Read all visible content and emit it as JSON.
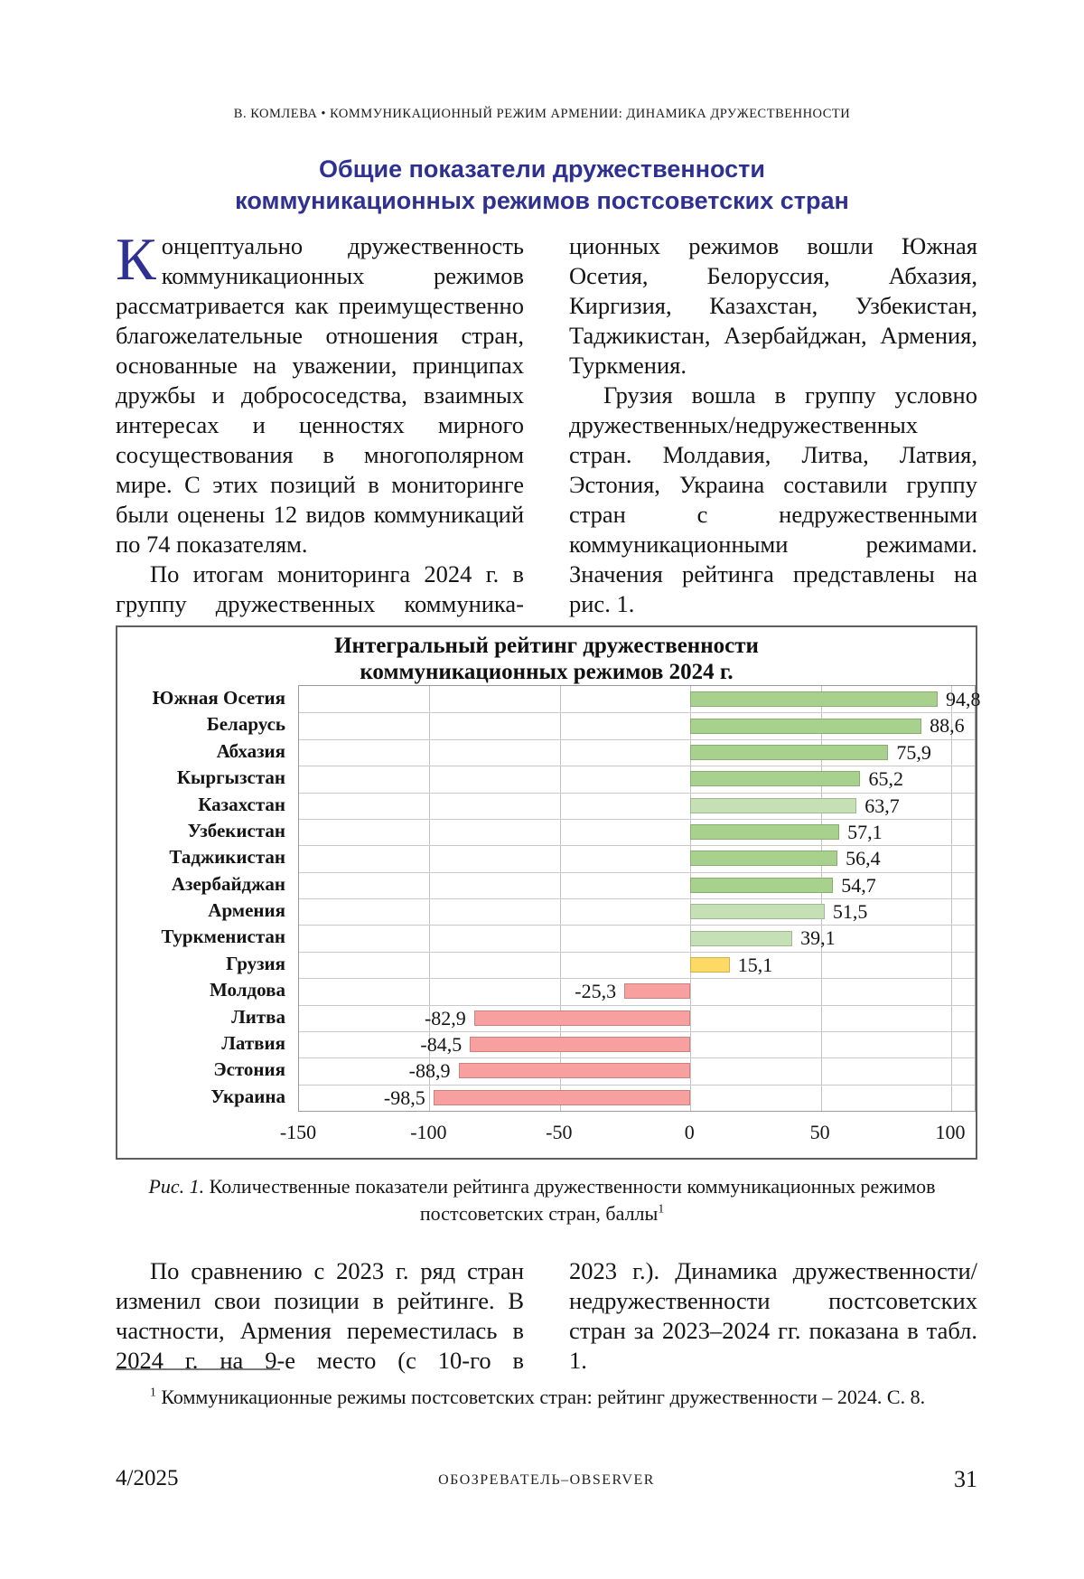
{
  "running_header": "В. КОМЛЕВА  •  КОММУНИКАЦИОННЫЙ РЕЖИМ АРМЕНИИ: ДИНАМИКА ДРУЖЕСТВЕННОСТИ",
  "title": {
    "line1": "Общие показатели дружественности",
    "line2": "коммуникационных режимов постсоветских стран",
    "color": "#2e3192"
  },
  "body1": {
    "col1_para1_dropcap": "К",
    "col1_para1_rest": "онцептуально дружественность коммуникационных режимов рассматривается как преимущественно благожелательные отношения стран, основанные на уважении, принципах дружбы и добрососедства, взаимных интересах и ценностях мирного сосуществования в многополярном мире. С этих позиций в мониторинге были оценены 12 видов коммуникаций по 74 показателям.",
    "col1_para2": "По итогам мониторинга 2024 г. в группу дружественных коммуника-",
    "col2_para1": "ционных режимов вошли Южная Осетия, Белоруссия, Абхазия, Киргизия, Казахстан, Узбекистан, Таджикистан, Азербайджан, Армения, Туркмения.",
    "col2_para2": "Грузия вошла в группу условно дружественных/недружественных стран. Молдавия, Литва, Латвия, Эстония, Украина составили группу стран с недружественными коммуникационными режимами. Значения рейтинга представлены на рис. 1."
  },
  "chart_data": {
    "type": "bar",
    "orientation": "horizontal",
    "title": "Интегральный рейтинг дружественности коммуникационных режимов 2024 г.",
    "title_line1": "Интегральный рейтинг дружественности",
    "title_line2": "коммуникационных  режимов 2024 г.",
    "categories": [
      "Южная Осетия",
      "Беларусь",
      "Абхазия",
      "Кыргызстан",
      "Казахстан",
      "Узбекистан",
      "Таджикистан",
      "Азербайджан",
      "Армения",
      "Туркменистан",
      "Грузия",
      "Молдова",
      "Литва",
      "Латвия",
      "Эстония",
      "Украина"
    ],
    "values": [
      94.8,
      88.6,
      75.9,
      65.2,
      63.7,
      57.1,
      56.4,
      54.7,
      51.5,
      39.1,
      15.1,
      -25.3,
      -82.9,
      -84.5,
      -88.9,
      -98.5
    ],
    "value_labels": [
      "94,8",
      "88,6",
      "75,9",
      "65,2",
      "63,7",
      "57,1",
      "56,4",
      "54,7",
      "51,5",
      "39,1",
      "15,1",
      "-25,3",
      "-82,9",
      "-84,5",
      "-88,9",
      "-98,5"
    ],
    "bar_colors": [
      "#a9d18e",
      "#a9d18e",
      "#a9d18e",
      "#a9d18e",
      "#c5e0b4",
      "#a9d18e",
      "#a9d18e",
      "#a9d18e",
      "#c5e0b4",
      "#c5e0b4",
      "#ffd966",
      "#f89f9f",
      "#f89f9f",
      "#f89f9f",
      "#f89f9f",
      "#f89f9f"
    ],
    "color_legend": {
      "friendly": "#a9d18e",
      "friendly_light": "#c5e0b4",
      "conditionally_friendly": "#ffd966",
      "unfriendly": "#f89f9f"
    },
    "xlim": [
      -150,
      109
    ],
    "x_ticks": [
      "-150",
      "-100",
      "-50",
      "0",
      "50",
      "100"
    ],
    "x_tick_values": [
      -150,
      -100,
      -50,
      0,
      50,
      100
    ],
    "grid": true,
    "legend_position": "none",
    "ylabel": "",
    "xlabel": ""
  },
  "caption": {
    "label": "Рис. 1.",
    "text": " Количественные показатели рейтинга дружественности коммуникационных режимов постсоветских стран, баллы",
    "footnote_ref": "1"
  },
  "body2": {
    "col1_para1": "По сравнению с 2023 г. ряд стран изменил свои позиции в рейтинге. В частности, Армения переместилась в 2024 г. на 9-е место (с 10-го в",
    "col2_para1": "2023 г.). Динамика дружественности/недружественности постсоветских стран за 2023–2024 гг. показана в табл. 1."
  },
  "footnote": {
    "marker": "1",
    "text": " Коммуникационные режимы постсоветских стран: рейтинг дружественности – 2024. С. 8."
  },
  "footer": {
    "issue": "4/2025",
    "journal": "ОБОЗРЕВАТЕЛЬ–OBSERVER",
    "page_number": "31"
  }
}
